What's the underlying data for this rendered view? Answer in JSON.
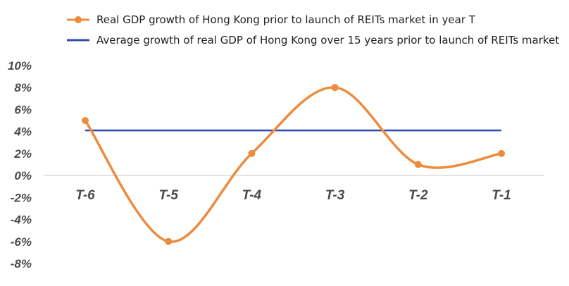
{
  "chart_data": {
    "type": "line",
    "categories": [
      "T-6",
      "T-5",
      "T-4",
      "T-3",
      "T-2",
      "T-1"
    ],
    "series": [
      {
        "name": "Real GDP growth of Hong Kong prior to launch of REITs market in year T",
        "values": [
          5,
          -6,
          2,
          8,
          1,
          2
        ],
        "color": "#ED8B3E",
        "style": "smooth-line-with-markers"
      },
      {
        "name": "Average growth of real GDP of Hong Kong over 15 years prior to launch of REITs market",
        "values": [
          4.1,
          4.1,
          4.1,
          4.1,
          4.1,
          4.1
        ],
        "color": "#2F4FAF",
        "style": "straight-line"
      }
    ],
    "yticks": [
      "10%",
      "8%",
      "6%",
      "4%",
      "2%",
      "0%",
      "-2%",
      "-4%",
      "-6%",
      "-8%"
    ],
    "ylim": [
      -8,
      10
    ],
    "title": "",
    "xlabel": "",
    "ylabel": "",
    "grid": false,
    "legend_position": "top"
  }
}
